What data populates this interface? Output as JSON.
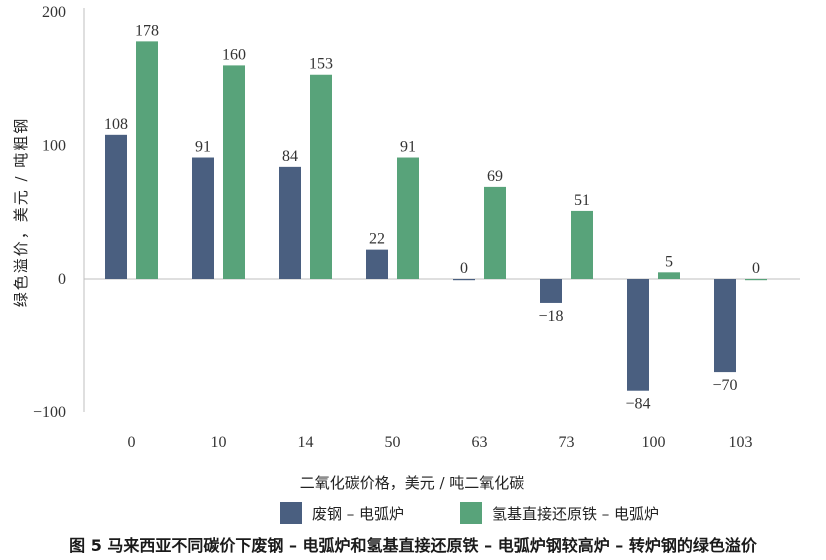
{
  "chart_data": {
    "type": "bar",
    "categories": [
      "0",
      "10",
      "14",
      "50",
      "63",
      "73",
      "100",
      "103"
    ],
    "series": [
      {
        "name": "废钢 – 电弧炉",
        "color": "#4a5f80",
        "values": [
          108,
          91,
          84,
          22,
          0,
          -18,
          -84,
          -70
        ]
      },
      {
        "name": "氢基直接还原铁 – 电弧炉",
        "color": "#58a37a",
        "values": [
          178,
          160,
          153,
          91,
          69,
          51,
          5,
          0
        ]
      }
    ],
    "xlabel": "二氧化碳价格，美元 / 吨二氧化碳",
    "ylabel": "绿色溢价，美元 / 吨粗钢",
    "ylim": [
      -100,
      200
    ],
    "yticks": [
      200,
      100,
      0,
      -100
    ],
    "ytick_labels": [
      "200",
      "100",
      "0",
      "−100"
    ],
    "grid": false,
    "legend": "bottom"
  },
  "caption": "图 5  马来西亚不同碳价下废钢 – 电弧炉和氢基直接还原铁 – 电弧炉钢较高炉 – 转炉钢的绿色溢价"
}
